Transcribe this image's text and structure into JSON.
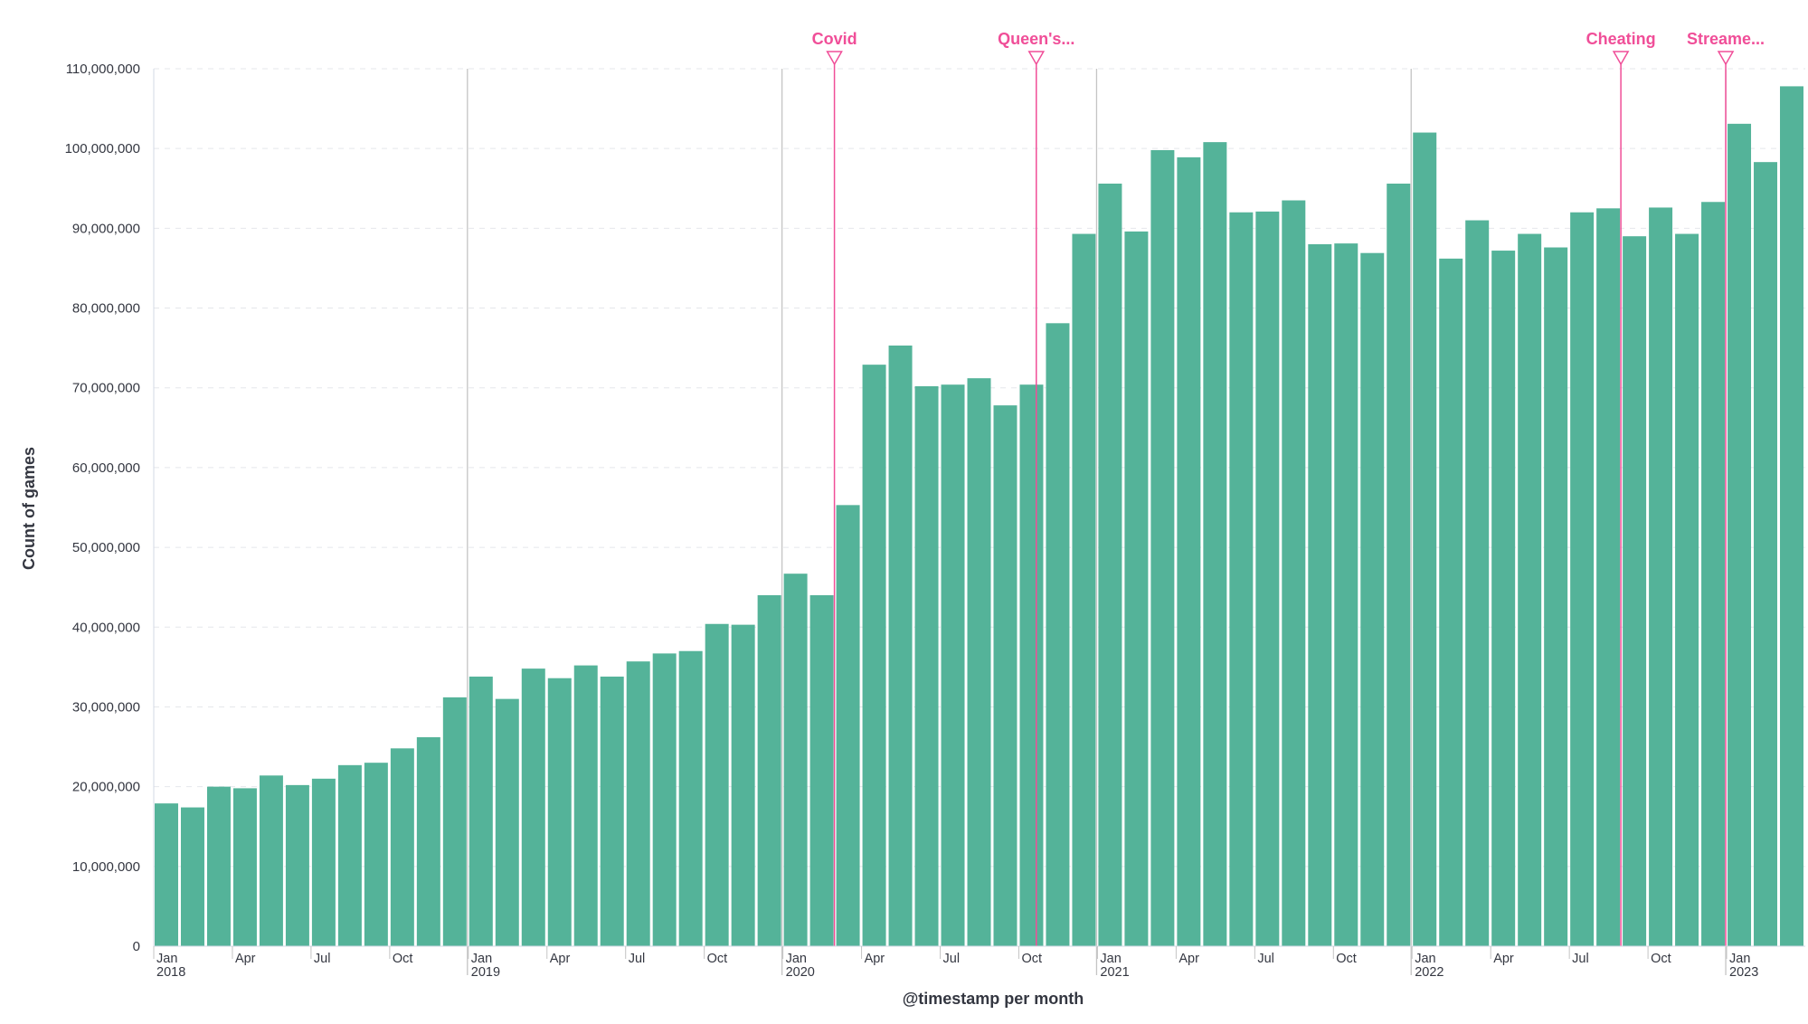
{
  "chart_data": {
    "type": "bar",
    "xlabel": "@timestamp per month",
    "ylabel": "Count of games",
    "ylim": [
      0,
      110000000
    ],
    "yticks": [
      0,
      10000000,
      20000000,
      30000000,
      40000000,
      50000000,
      60000000,
      70000000,
      80000000,
      90000000,
      100000000,
      110000000
    ],
    "ytick_labels": [
      "0",
      "10,000,000",
      "20,000,000",
      "30,000,000",
      "40,000,000",
      "50,000,000",
      "60,000,000",
      "70,000,000",
      "80,000,000",
      "90,000,000",
      "100,000,000",
      "110,000,000"
    ],
    "grid": true,
    "categories": [
      "2018-01",
      "2018-02",
      "2018-03",
      "2018-04",
      "2018-05",
      "2018-06",
      "2018-07",
      "2018-08",
      "2018-09",
      "2018-10",
      "2018-11",
      "2018-12",
      "2019-01",
      "2019-02",
      "2019-03",
      "2019-04",
      "2019-05",
      "2019-06",
      "2019-07",
      "2019-08",
      "2019-09",
      "2019-10",
      "2019-11",
      "2019-12",
      "2020-01",
      "2020-02",
      "2020-03",
      "2020-04",
      "2020-05",
      "2020-06",
      "2020-07",
      "2020-08",
      "2020-09",
      "2020-10",
      "2020-11",
      "2020-12",
      "2021-01",
      "2021-02",
      "2021-03",
      "2021-04",
      "2021-05",
      "2021-06",
      "2021-07",
      "2021-08",
      "2021-09",
      "2021-10",
      "2021-11",
      "2021-12",
      "2022-01",
      "2022-02",
      "2022-03",
      "2022-04",
      "2022-05",
      "2022-06",
      "2022-07",
      "2022-08",
      "2022-09",
      "2022-10",
      "2022-11",
      "2022-12",
      "2023-01",
      "2023-02",
      "2023-03"
    ],
    "values": [
      17900000,
      17400000,
      20000000,
      19800000,
      21400000,
      20200000,
      21000000,
      22700000,
      23000000,
      24800000,
      26200000,
      31200000,
      33800000,
      31000000,
      34800000,
      33600000,
      35200000,
      33800000,
      35700000,
      36700000,
      37000000,
      40400000,
      40300000,
      44000000,
      46700000,
      44000000,
      55300000,
      72900000,
      75300000,
      70200000,
      70400000,
      71200000,
      67800000,
      70400000,
      78100000,
      89300000,
      95600000,
      89600000,
      99800000,
      98900000,
      100800000,
      92000000,
      92100000,
      93500000,
      88000000,
      88100000,
      86900000,
      95600000,
      102000000,
      86200000,
      91000000,
      87200000,
      89300000,
      87600000,
      92000000,
      92500000,
      89000000,
      92600000,
      89300000,
      93300000,
      103100000,
      98300000,
      107800000
    ],
    "bar_color": "#54b399",
    "x_tick_labels": [
      {
        "index": 0,
        "month": "Jan",
        "year": "2018"
      },
      {
        "index": 3,
        "month": "Apr",
        "year": ""
      },
      {
        "index": 6,
        "month": "Jul",
        "year": ""
      },
      {
        "index": 9,
        "month": "Oct",
        "year": ""
      },
      {
        "index": 12,
        "month": "Jan",
        "year": "2019"
      },
      {
        "index": 15,
        "month": "Apr",
        "year": ""
      },
      {
        "index": 18,
        "month": "Jul",
        "year": ""
      },
      {
        "index": 21,
        "month": "Oct",
        "year": ""
      },
      {
        "index": 24,
        "month": "Jan",
        "year": "2020"
      },
      {
        "index": 27,
        "month": "Apr",
        "year": ""
      },
      {
        "index": 30,
        "month": "Jul",
        "year": ""
      },
      {
        "index": 33,
        "month": "Oct",
        "year": ""
      },
      {
        "index": 36,
        "month": "Jan",
        "year": "2021"
      },
      {
        "index": 39,
        "month": "Apr",
        "year": ""
      },
      {
        "index": 42,
        "month": "Jul",
        "year": ""
      },
      {
        "index": 45,
        "month": "Oct",
        "year": ""
      },
      {
        "index": 48,
        "month": "Jan",
        "year": "2022"
      },
      {
        "index": 51,
        "month": "Apr",
        "year": ""
      },
      {
        "index": 54,
        "month": "Jul",
        "year": ""
      },
      {
        "index": 57,
        "month": "Oct",
        "year": ""
      },
      {
        "index": 60,
        "month": "Jan",
        "year": "2023"
      }
    ],
    "year_boundaries": [
      12,
      24,
      36,
      48,
      60
    ],
    "annotations": [
      {
        "label": "Covid",
        "date": "2020-03-01",
        "month_index": 26,
        "color": "#f04e98"
      },
      {
        "label": "Queen's...",
        "date": "2020-10-15",
        "month_index": 33.7,
        "color": "#f04e98"
      },
      {
        "label": "Cheating",
        "date": "2022-09-01",
        "month_index": 56,
        "color": "#f04e98"
      },
      {
        "label": "Streame...",
        "date": "2023-01-01",
        "month_index": 60,
        "color": "#f04e98"
      }
    ]
  }
}
